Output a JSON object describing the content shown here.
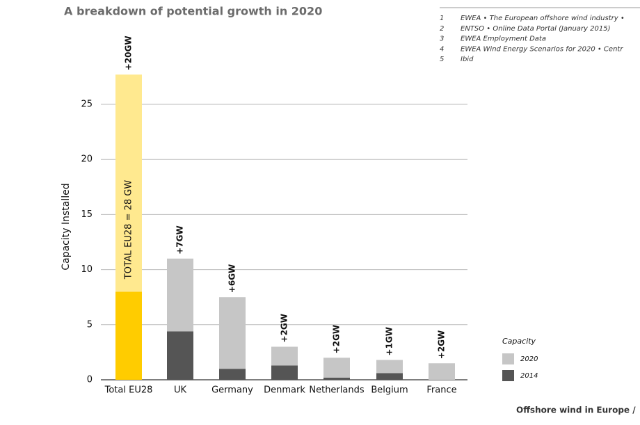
{
  "title": "A breakdown of potential growth in 2020",
  "footnotes": [
    {
      "number": "1",
      "text": "EWEA • The European offshore wind industry •"
    },
    {
      "number": "2",
      "text": "ENTSO • Online Data Portal (January 2015)"
    },
    {
      "number": "3",
      "text": "EWEA Employment Data"
    },
    {
      "number": "4",
      "text": "EWEA Wind Energy Scenarios for 2020 • Centr"
    },
    {
      "number": "5",
      "text": "Ibid"
    }
  ],
  "footer": "Offshore wind in Europe /",
  "chart_data": {
    "type": "stacked_bar",
    "ylabel": "Capacity Installed",
    "categories": [
      "Total EU28",
      "UK",
      "Germany",
      "Denmark",
      "Netherlands",
      "Belgium",
      "France"
    ],
    "series": [
      {
        "name": "2014",
        "color": "#555555",
        "colors": [
          "#ffcc00",
          "#555555",
          "#555555",
          "#555555",
          "#555555",
          "#555555",
          "#555555"
        ],
        "values": [
          8,
          4.4,
          1,
          1.3,
          0.2,
          0.6,
          0
        ]
      },
      {
        "name": "2020",
        "color": "#c6c6c6",
        "colors": [
          "#ffe98f",
          "#c6c6c6",
          "#c6c6c6",
          "#c6c6c6",
          "#c6c6c6",
          "#c6c6c6",
          "#c6c6c6"
        ],
        "values": [
          19.7,
          6.6,
          6.5,
          1.7,
          1.8,
          1.2,
          1.5
        ]
      }
    ],
    "annotations": [
      "+20GW",
      "+7GW",
      "+6GW",
      "+2GW",
      "+2GW",
      "+1GW",
      "+2GW"
    ],
    "inner_label": "TOTAL EU28 = 28 GW",
    "legend_title": "Capacity",
    "ylim": [
      0,
      28
    ],
    "yticks": [
      0,
      5,
      10,
      15,
      20,
      25
    ],
    "grid": true
  }
}
